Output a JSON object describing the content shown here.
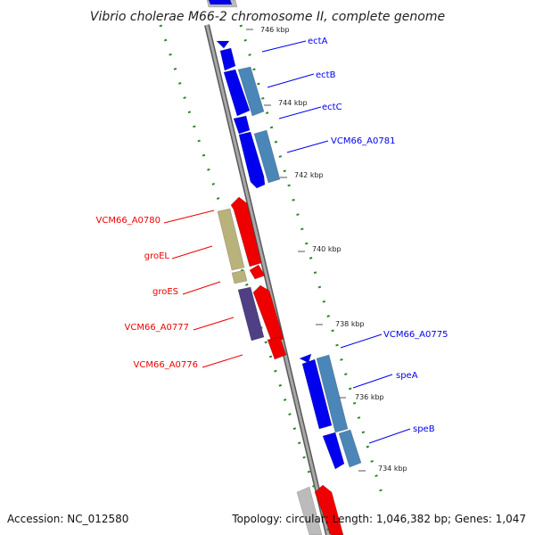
{
  "title": "Vibrio cholerae M66-2 chromosome II, complete genome",
  "accession": "Accession: NC_012580",
  "summary": "Topology: circular; Length: 1,046,382 bp; Genes: 1,047",
  "colors": {
    "backbone": "#8a8a8a",
    "gc_dots": "#2a8a2a",
    "forward": "#0000ee",
    "reverse": "#ee0000",
    "forward_cog": "#4a86b8",
    "reverse_cog_yellow": "#b9b27a",
    "reverse_cog_purple": "#4f3f85",
    "gray_feature": "#bbbbbb"
  },
  "ticks": [
    {
      "label": "746 kbp"
    },
    {
      "label": "744 kbp"
    },
    {
      "label": "742 kbp"
    },
    {
      "label": "740 kbp"
    },
    {
      "label": "738 kbp"
    },
    {
      "label": "736 kbp"
    },
    {
      "label": "734 kbp"
    }
  ],
  "forward_labels": [
    {
      "name": "ectA"
    },
    {
      "name": "ectB"
    },
    {
      "name": "ectC"
    },
    {
      "name": "VCM66_A0781"
    },
    {
      "name": "VCM66_A0775"
    },
    {
      "name": "speA"
    },
    {
      "name": "speB"
    }
  ],
  "reverse_labels": [
    {
      "name": "VCM66_A0780"
    },
    {
      "name": "groEL"
    },
    {
      "name": "groES"
    },
    {
      "name": "VCM66_A0777"
    },
    {
      "name": "VCM66_A0776"
    }
  ]
}
